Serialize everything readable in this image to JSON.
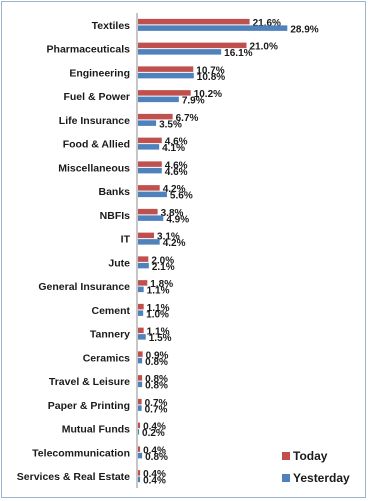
{
  "chart_data": {
    "type": "bar",
    "orientation": "horizontal",
    "categories": [
      "Textiles",
      "Pharmaceuticals",
      "Engineering",
      "Fuel & Power",
      "Life Insurance",
      "Food & Allied",
      "Miscellaneous",
      "Banks",
      "NBFIs",
      "IT",
      "Jute",
      "General Insurance",
      "Cement",
      "Tannery",
      "Ceramics",
      "Travel & Leisure",
      "Paper & Printing",
      "Mutual Funds",
      "Telecommunication",
      "Services & Real Estate"
    ],
    "series": [
      {
        "name": "Today",
        "color": "#c0504d",
        "values": [
          21.6,
          21.0,
          10.7,
          10.2,
          6.7,
          4.6,
          4.6,
          4.2,
          3.8,
          3.1,
          2.0,
          1.8,
          1.1,
          1.1,
          0.9,
          0.8,
          0.7,
          0.4,
          0.4,
          0.4
        ],
        "labels": [
          "21.6%",
          "21.0%",
          "10.7%",
          "10.2%",
          "6.7%",
          "4.6%",
          "4.6%",
          "4.2%",
          "3.8%",
          "3.1%",
          "2.0%",
          "1.8%",
          "1.1%",
          "1.1%",
          "0.9%",
          "0.8%",
          "0.7%",
          "0.4%",
          "0.4%",
          "0.4%"
        ]
      },
      {
        "name": "Yesterday",
        "color": "#4f81bd",
        "values": [
          28.9,
          16.1,
          10.8,
          7.9,
          3.5,
          4.1,
          4.6,
          5.6,
          4.9,
          4.2,
          2.1,
          1.1,
          1.0,
          1.5,
          0.8,
          0.8,
          0.7,
          0.2,
          0.8,
          0.4
        ],
        "labels": [
          "28.9%",
          "16.1%",
          "10.8%",
          "7.9%",
          "3.5%",
          "4.1%",
          "4.6%",
          "5.6%",
          "4.9%",
          "4.2%",
          "2.1%",
          "1.1%",
          "1.0%",
          "1.5%",
          "0.8%",
          "0.8%",
          "0.7%",
          "0.2%",
          "0.8%",
          "0.4%"
        ]
      }
    ],
    "xlim": [
      0,
      30
    ],
    "grid": false,
    "legend": "bottom-right"
  }
}
